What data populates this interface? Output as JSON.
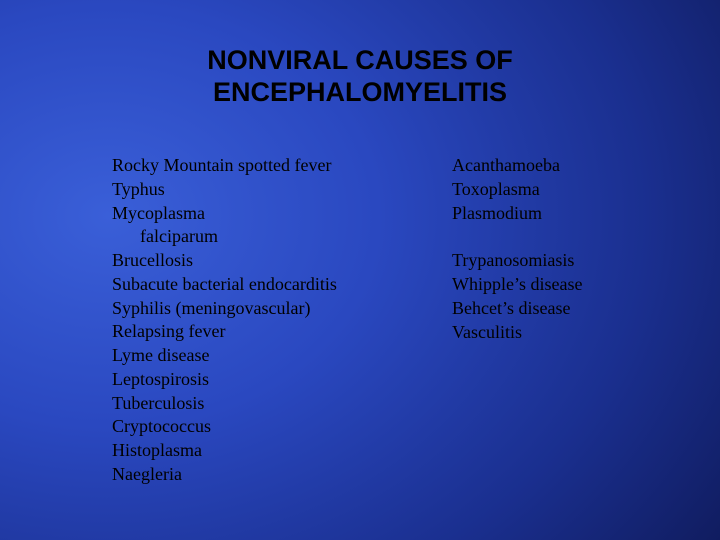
{
  "title": {
    "line1": "NONVIRAL CAUSES OF",
    "line2": "ENCEPHALOMYELITIS"
  },
  "left_column": [
    "Rocky Mountain spotted fever",
    "Typhus",
    "Mycoplasma",
    "falciparum",
    "Brucellosis",
    "Subacute bacterial endocarditis",
    "Syphilis (meningovascular)",
    "Relapsing fever",
    "Lyme disease",
    "Leptospirosis",
    "Tuberculosis",
    "Cryptococcus",
    "Histoplasma",
    "Naegleria"
  ],
  "right_column_top": [
    "Acanthamoeba",
    "Toxoplasma",
    "Plasmodium"
  ],
  "right_column_bottom": [
    "Trypanosomiasis",
    "Whipple’s disease",
    "Behcet’s disease",
    "Vasculitis"
  ],
  "colors": {
    "text": "#000000",
    "bg_center": "#3a5fd8",
    "bg_outer": "#080f38"
  },
  "typography": {
    "title_font": "Arial",
    "title_size_pt": 20,
    "title_weight": "bold",
    "body_font": "Times New Roman",
    "body_size_pt": 14
  }
}
